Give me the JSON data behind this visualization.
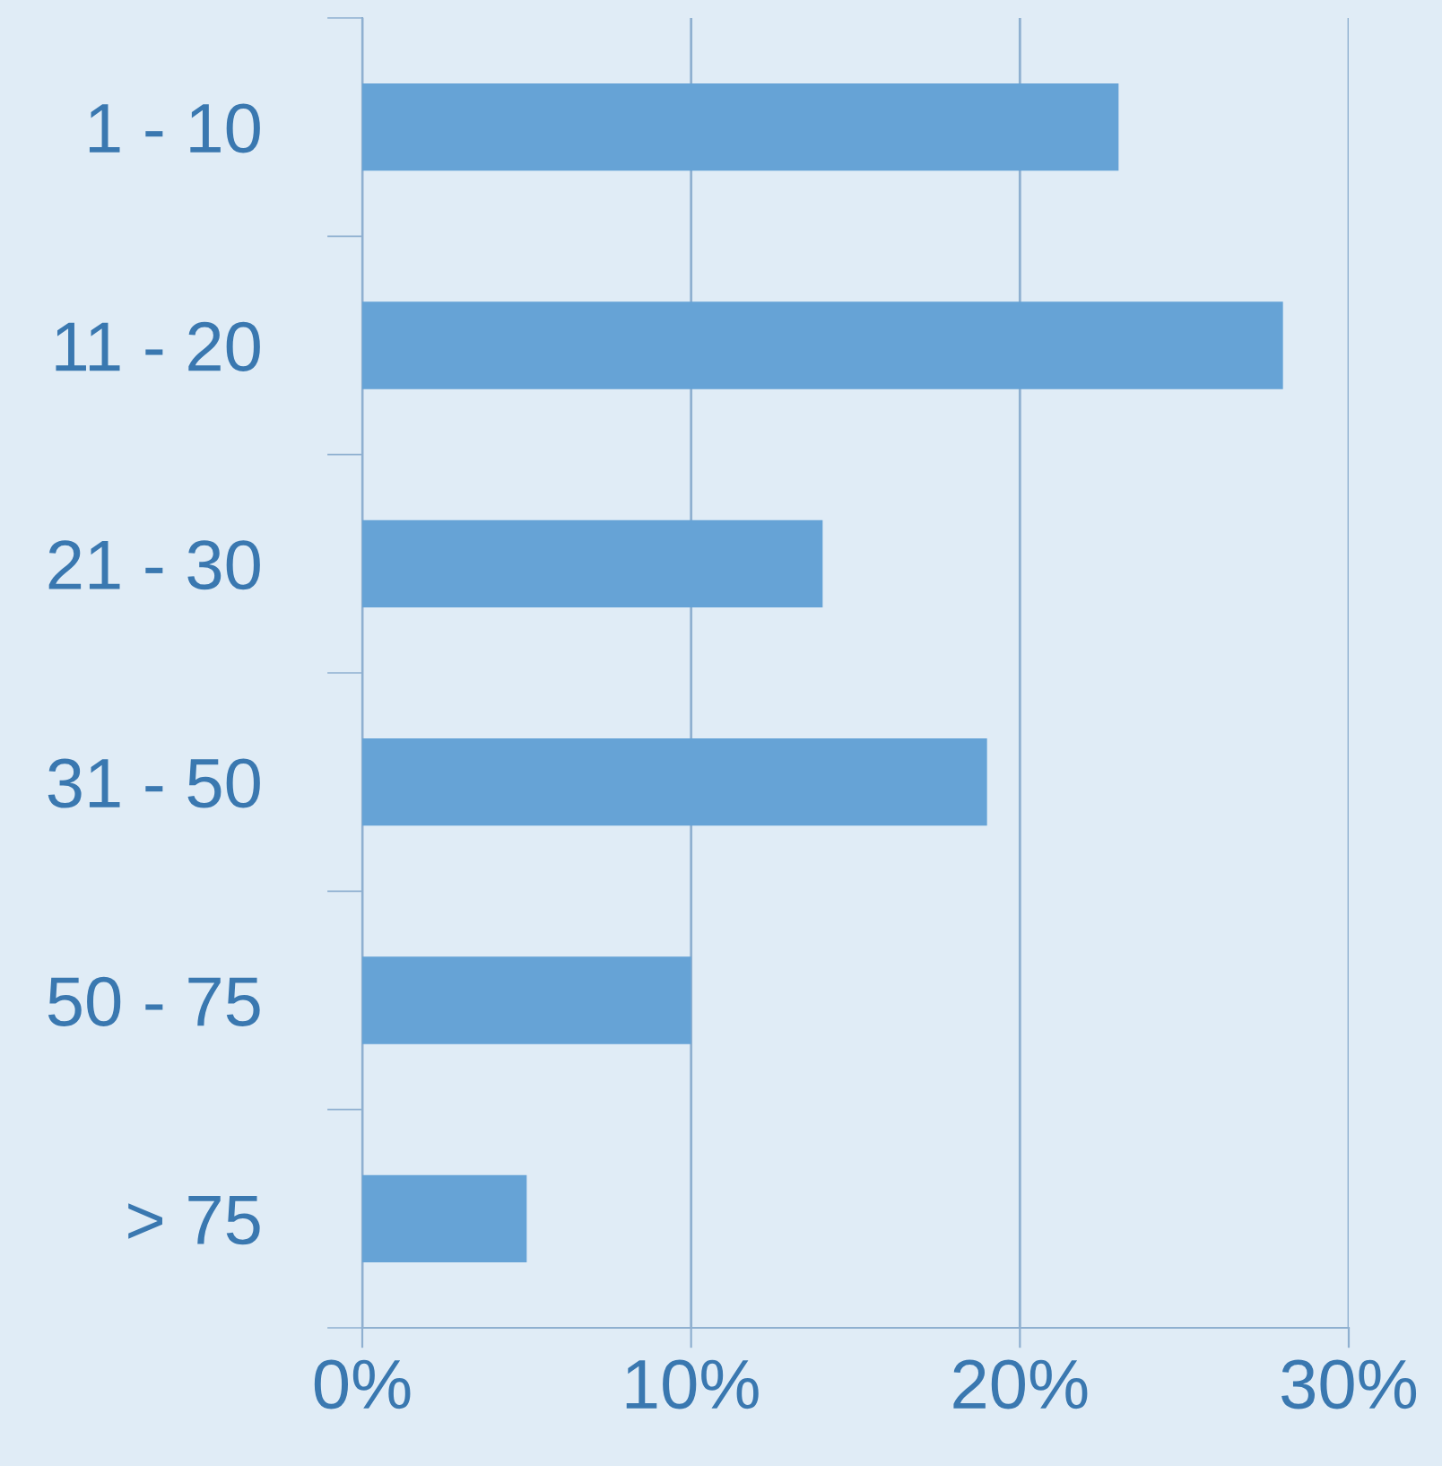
{
  "chart_data": {
    "type": "bar",
    "orientation": "horizontal",
    "categories": [
      "1 - 10",
      "11 - 20",
      "21 - 30",
      "31 - 50",
      "50 - 75",
      "> 75"
    ],
    "values": [
      23,
      28,
      14,
      19,
      10,
      5
    ],
    "color": "#66a3d6",
    "xlim": [
      0,
      30
    ],
    "xticks": [
      {
        "value": 0,
        "label": "0%"
      },
      {
        "value": 10,
        "label": "10%"
      },
      {
        "value": 20,
        "label": "20%"
      },
      {
        "value": 30,
        "label": "30%"
      }
    ],
    "grid": "x",
    "legend": false
  }
}
